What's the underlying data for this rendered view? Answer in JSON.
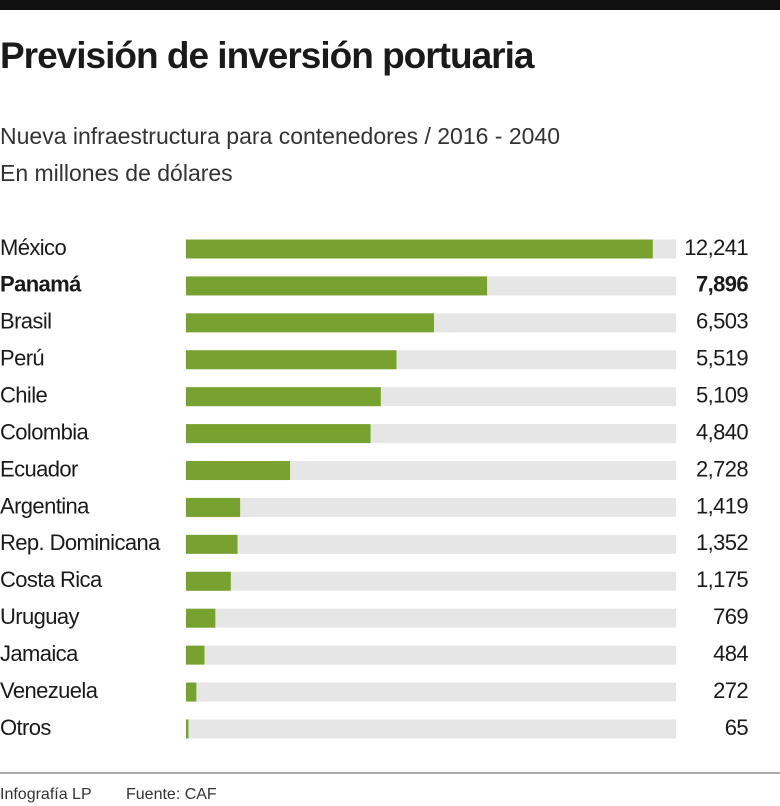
{
  "chart_data": {
    "type": "hbar",
    "title": "Previsión de inversión portuaria",
    "subtitle": [
      "Nueva infraestructura para contenedores / 2016 - 2040",
      "En millones de dólares"
    ],
    "categories": [
      "México",
      "Panamá",
      "Brasil",
      "Perú",
      "Chile",
      "Colombia",
      "Ecuador",
      "Argentina",
      "Rep. Dominicana",
      "Costa Rica",
      "Uruguay",
      "Jamaica",
      "Venezuela",
      "Otros"
    ],
    "values": [
      12241,
      7896,
      6503,
      5519,
      5109,
      4840,
      2728,
      1419,
      1352,
      1175,
      769,
      484,
      272,
      65
    ],
    "value_labels": [
      "12,241",
      "7,896",
      "6,503",
      "5,519",
      "5,109",
      "4,840",
      "2,728",
      "1,419",
      "1,352",
      "1,175",
      "769",
      "484",
      "272",
      "65"
    ],
    "color": "#78a22f",
    "track_color": "#e6e6e6",
    "xlim": [
      0,
      12850
    ],
    "highlight_index": 1,
    "credit": "Infografía LP",
    "source": "Fuente: CAF"
  }
}
